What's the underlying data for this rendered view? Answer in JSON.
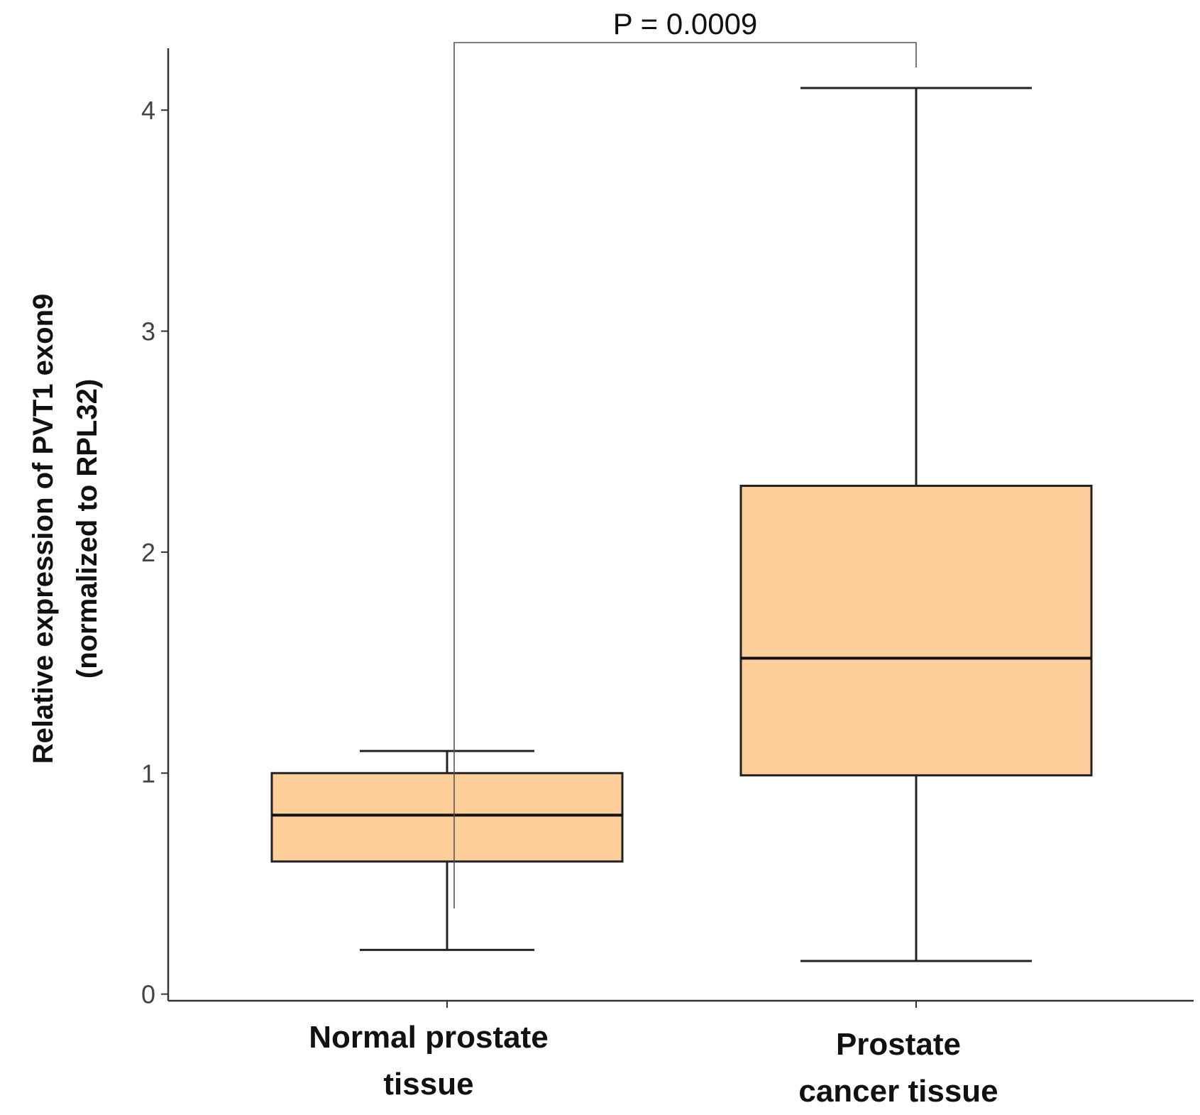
{
  "chart_data": {
    "type": "box",
    "ylabel_lines": [
      "Relative expression of PVT1 exon9",
      "(normalized to RPL32)"
    ],
    "yticks": [
      0,
      1,
      2,
      3,
      4
    ],
    "ylim": [
      -0.03,
      4.28
    ],
    "grid": false,
    "categories": [
      {
        "label_lines": [
          "Normal prostate",
          "tissue"
        ],
        "whisker_low": 0.2,
        "q1": 0.6,
        "median": 0.81,
        "q3": 1.0,
        "whisker_high": 1.1
      },
      {
        "label_lines": [
          "Prostate",
          "cancer tissue"
        ],
        "whisker_low": 0.15,
        "q1": 0.99,
        "median": 1.52,
        "q3": 2.3,
        "whisker_high": 4.1
      }
    ],
    "box_fill": "#FECE9A",
    "annotation": {
      "text": "P = 0.0009",
      "from_category": 0,
      "to_category": 1
    }
  }
}
